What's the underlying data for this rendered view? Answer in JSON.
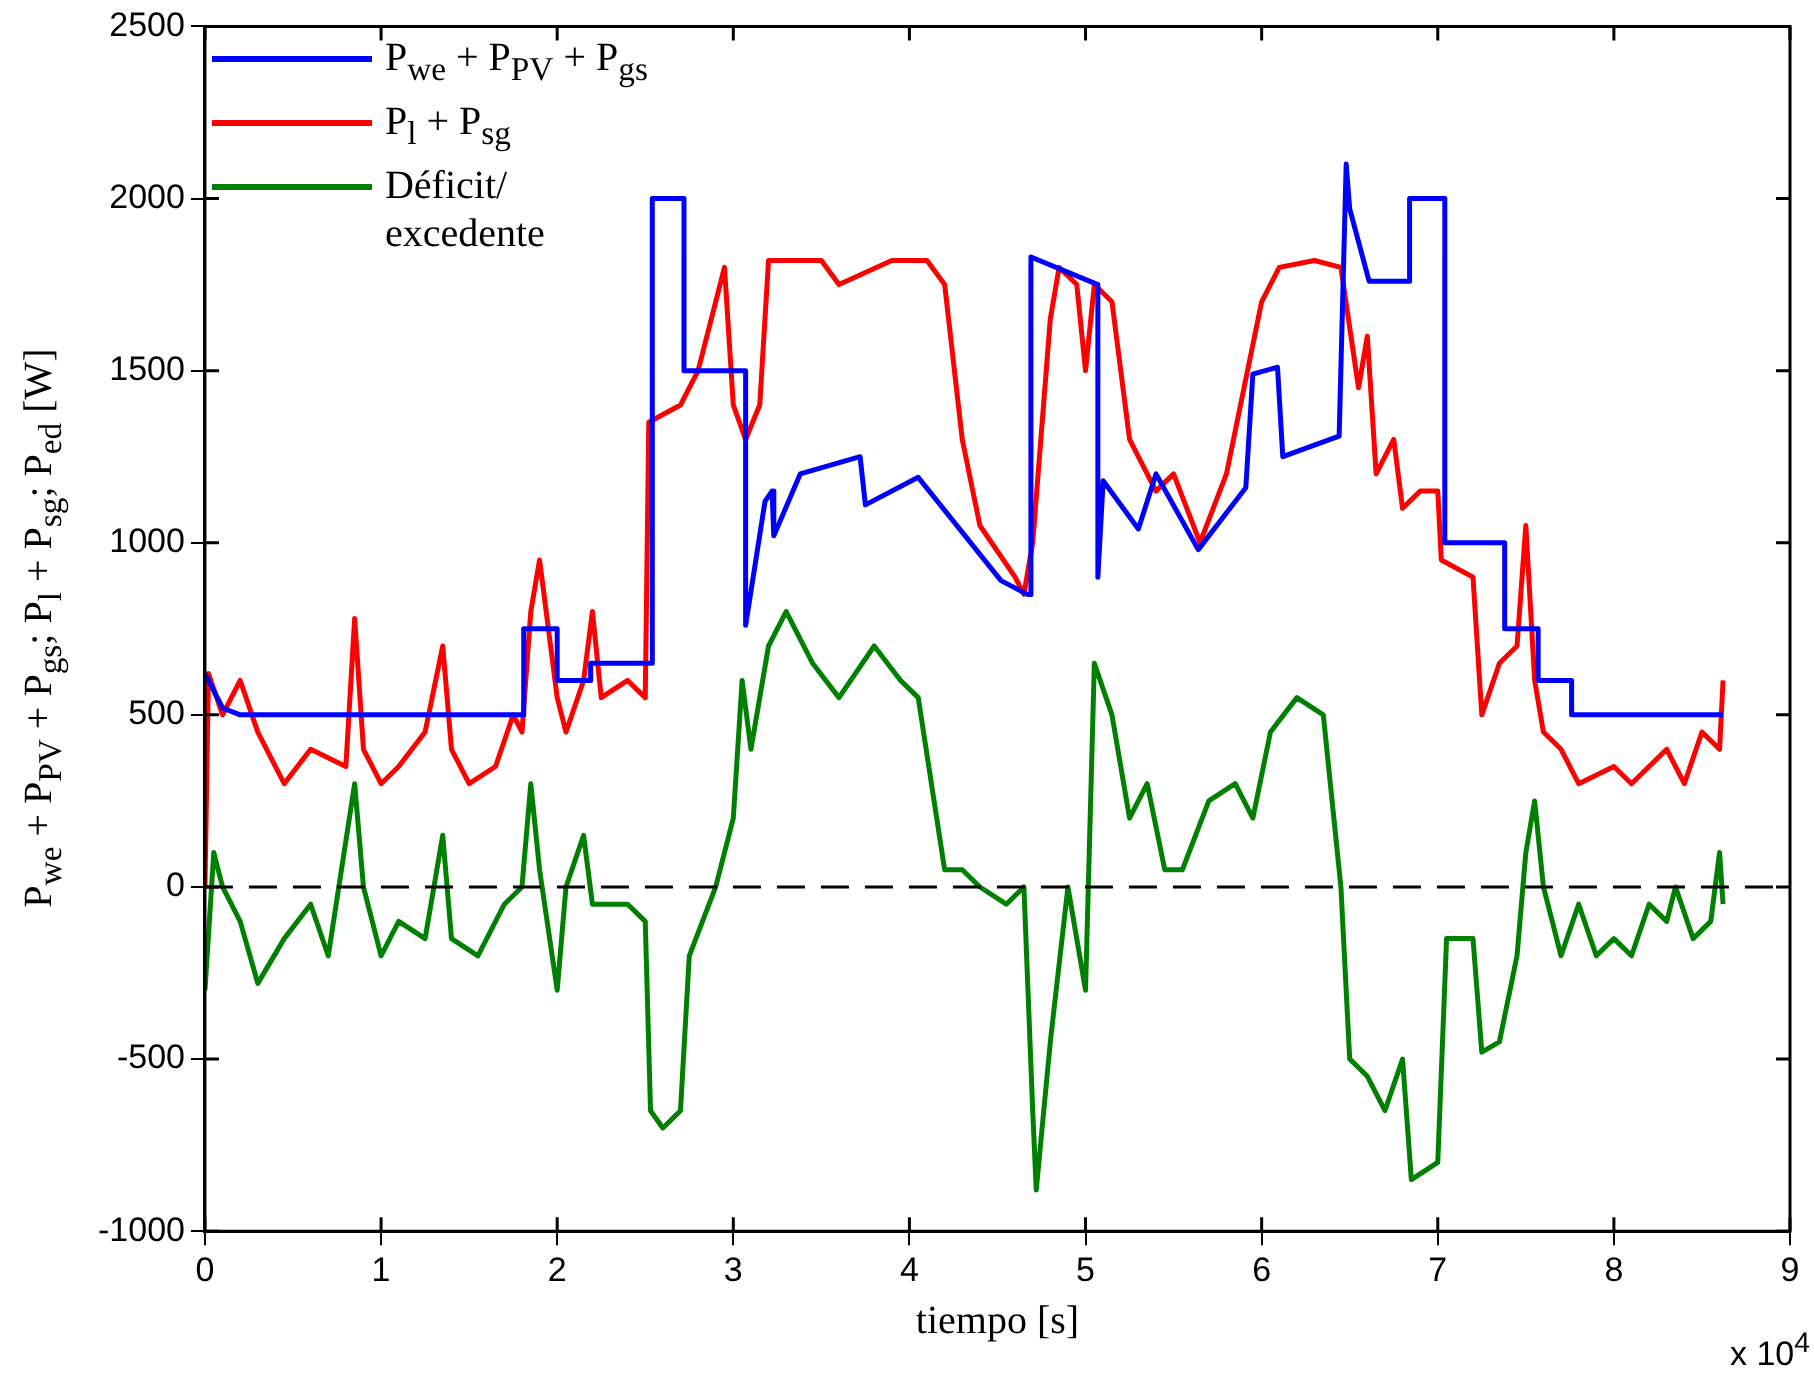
{
  "chart_data": {
    "type": "line",
    "xlabel": "tiempo [s]",
    "ylabel": "P$_{we}$ + P$_{PV}$ + P$_{gs}$; P$_{l}$ + P$_{sg}$; P$_{ed}$ [W]",
    "annotations": [
      "x 10$^{4}$"
    ],
    "xlim": [
      0,
      9
    ],
    "xticks": [
      0,
      1,
      2,
      3,
      4,
      5,
      6,
      7,
      8,
      9
    ],
    "ylim": [
      -1000,
      2500
    ],
    "yticks": [
      -1000,
      -500,
      0,
      500,
      1000,
      1500,
      2000,
      2500
    ],
    "grid": false,
    "legend": "top left",
    "marker": "none",
    "line_style": "solid",
    "ref_lines": [
      {
        "axis": "y",
        "value": 0,
        "color": "#000000",
        "line_style": "dashed"
      }
    ],
    "series": [
      {
        "name": "P$_{we}$ + P$_{PV}$ + P$_{gs}$",
        "color": "#0000ff",
        "x": [
          0,
          0.1,
          0.2,
          1.81,
          1.81,
          2.0,
          2.0,
          2.19,
          2.19,
          2.54,
          2.54,
          2.72,
          2.72,
          3.07,
          3.07,
          3.18,
          3.22,
          3.23,
          3.38,
          3.72,
          3.75,
          4.05,
          4.52,
          4.67,
          4.69,
          4.69,
          5.07,
          5.07,
          5.1,
          5.3,
          5.4,
          5.64,
          5.91,
          5.95,
          6.09,
          6.12,
          6.44,
          6.48,
          6.5,
          6.61,
          6.84,
          6.84,
          7.04,
          7.04,
          7.38,
          7.38,
          7.57,
          7.57,
          7.76,
          7.76,
          8.62
        ],
        "values": [
          620,
          520,
          500,
          500,
          750,
          750,
          600,
          600,
          650,
          650,
          2000,
          2000,
          1500,
          1500,
          760,
          1120,
          1150,
          1020,
          1200,
          1250,
          1110,
          1190,
          890,
          850,
          850,
          1830,
          1750,
          900,
          1180,
          1040,
          1200,
          980,
          1160,
          1490,
          1510,
          1250,
          1310,
          2100,
          1970,
          1760,
          1760,
          2000,
          2000,
          1000,
          1000,
          750,
          750,
          600,
          600,
          500,
          500
        ]
      },
      {
        "name": "P$_{l}$ + P$_{sg}$",
        "color": "#ff0000",
        "x": [
          0,
          0.02,
          0.1,
          0.2,
          0.3,
          0.45,
          0.6,
          0.8,
          0.85,
          0.9,
          1.0,
          1.1,
          1.25,
          1.35,
          1.4,
          1.5,
          1.65,
          1.75,
          1.8,
          1.85,
          1.9,
          2.0,
          2.05,
          2.15,
          2.2,
          2.25,
          2.4,
          2.5,
          2.52,
          2.7,
          2.8,
          2.95,
          3.0,
          3.07,
          3.15,
          3.2,
          3.5,
          3.6,
          3.9,
          4.1,
          4.2,
          4.3,
          4.4,
          4.6,
          4.65,
          4.7,
          4.8,
          4.85,
          4.95,
          5.0,
          5.05,
          5.15,
          5.25,
          5.4,
          5.5,
          5.65,
          5.8,
          5.9,
          6.0,
          6.1,
          6.3,
          6.45,
          6.55,
          6.6,
          6.65,
          6.75,
          6.8,
          6.9,
          7.0,
          7.02,
          7.2,
          7.25,
          7.35,
          7.45,
          7.5,
          7.55,
          7.6,
          7.7,
          7.8,
          8.0,
          8.1,
          8.3,
          8.4,
          8.5,
          8.6,
          8.62
        ],
        "values": [
          0,
          620,
          500,
          600,
          450,
          300,
          400,
          350,
          780,
          400,
          300,
          350,
          450,
          700,
          400,
          300,
          350,
          500,
          450,
          800,
          950,
          550,
          450,
          600,
          800,
          550,
          600,
          550,
          1350,
          1400,
          1500,
          1800,
          1400,
          1300,
          1400,
          1820,
          1820,
          1750,
          1820,
          1820,
          1750,
          1300,
          1050,
          900,
          850,
          1000,
          1650,
          1800,
          1750,
          1500,
          1750,
          1700,
          1300,
          1150,
          1200,
          1000,
          1200,
          1450,
          1700,
          1800,
          1820,
          1800,
          1450,
          1600,
          1200,
          1300,
          1100,
          1150,
          1150,
          950,
          900,
          500,
          650,
          700,
          1050,
          600,
          450,
          400,
          300,
          350,
          300,
          400,
          300,
          450,
          400,
          600
        ]
      },
      {
        "name": "Déficit/ excedente",
        "color": "#008000",
        "x": [
          0,
          0.05,
          0.1,
          0.2,
          0.3,
          0.45,
          0.6,
          0.7,
          0.85,
          0.9,
          1.0,
          1.1,
          1.25,
          1.35,
          1.4,
          1.55,
          1.7,
          1.8,
          1.85,
          1.9,
          2.0,
          2.05,
          2.15,
          2.2,
          2.4,
          2.5,
          2.53,
          2.6,
          2.7,
          2.75,
          2.9,
          3.0,
          3.05,
          3.1,
          3.2,
          3.3,
          3.45,
          3.6,
          3.8,
          3.95,
          4.05,
          4.2,
          4.3,
          4.4,
          4.55,
          4.65,
          4.7,
          4.72,
          4.8,
          4.9,
          5.0,
          5.05,
          5.15,
          5.25,
          5.35,
          5.45,
          5.55,
          5.7,
          5.85,
          5.95,
          6.05,
          6.2,
          6.35,
          6.45,
          6.5,
          6.6,
          6.7,
          6.8,
          6.85,
          7.0,
          7.05,
          7.2,
          7.25,
          7.35,
          7.45,
          7.5,
          7.55,
          7.6,
          7.7,
          7.8,
          7.9,
          8.0,
          8.1,
          8.2,
          8.3,
          8.35,
          8.45,
          8.55,
          8.6,
          8.62
        ],
        "values": [
          -300,
          100,
          0,
          -100,
          -280,
          -150,
          -50,
          -200,
          300,
          0,
          -200,
          -100,
          -150,
          150,
          -150,
          -200,
          -50,
          0,
          300,
          50,
          -300,
          0,
          150,
          -50,
          -50,
          -100,
          -650,
          -700,
          -650,
          -200,
          0,
          200,
          600,
          400,
          700,
          800,
          650,
          550,
          700,
          600,
          550,
          50,
          50,
          0,
          -50,
          0,
          -650,
          -880,
          -450,
          0,
          -300,
          650,
          500,
          200,
          300,
          50,
          50,
          250,
          300,
          200,
          450,
          550,
          500,
          0,
          -500,
          -550,
          -650,
          -500,
          -850,
          -800,
          -150,
          -150,
          -480,
          -450,
          -200,
          100,
          250,
          0,
          -200,
          -50,
          -200,
          -150,
          -200,
          -50,
          -100,
          0,
          -150,
          -100,
          100,
          -50
        ]
      }
    ]
  }
}
